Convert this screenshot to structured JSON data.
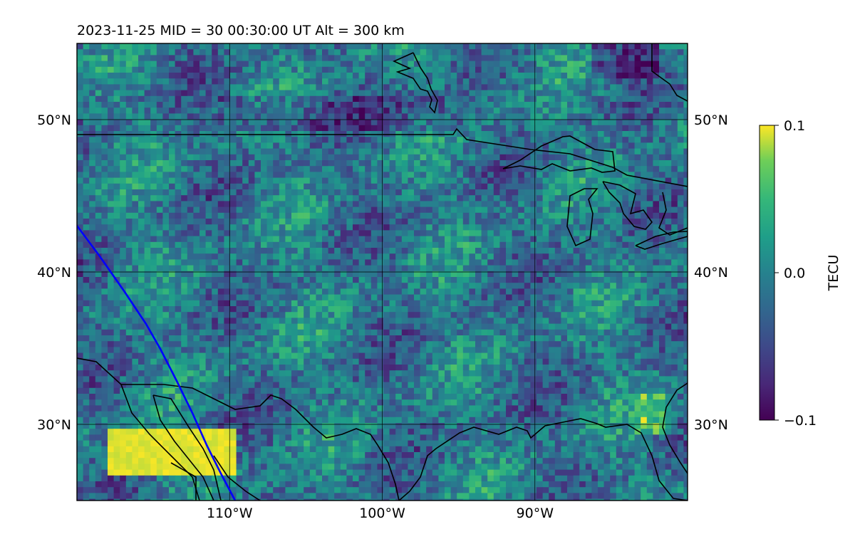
{
  "map": {
    "title": "2023-11-25  MID =  30    00:30:00  UT  Alt = 300 km",
    "lon_range": [
      -120,
      -80
    ],
    "lat_range": [
      25,
      55
    ],
    "lon_ticks": [
      {
        "value": -110,
        "label": "110°W"
      },
      {
        "value": -100,
        "label": "100°W"
      },
      {
        "value": -90,
        "label": "90°W"
      }
    ],
    "lat_ticks": [
      {
        "value": 50,
        "label": "50°N"
      },
      {
        "value": 40,
        "label": "40°N"
      },
      {
        "value": 30,
        "label": "30°N"
      }
    ],
    "colormap": "viridis",
    "track_color": "#0000ff",
    "coast_color": "#000000",
    "grid": true
  },
  "colorbar": {
    "label": "TECU",
    "ticks": [
      {
        "value": 0.1,
        "label": "0.1"
      },
      {
        "value": 0.0,
        "label": "0.0"
      },
      {
        "value": -0.1,
        "label": "−0.1"
      }
    ],
    "range": [
      -0.1,
      0.1
    ]
  }
}
